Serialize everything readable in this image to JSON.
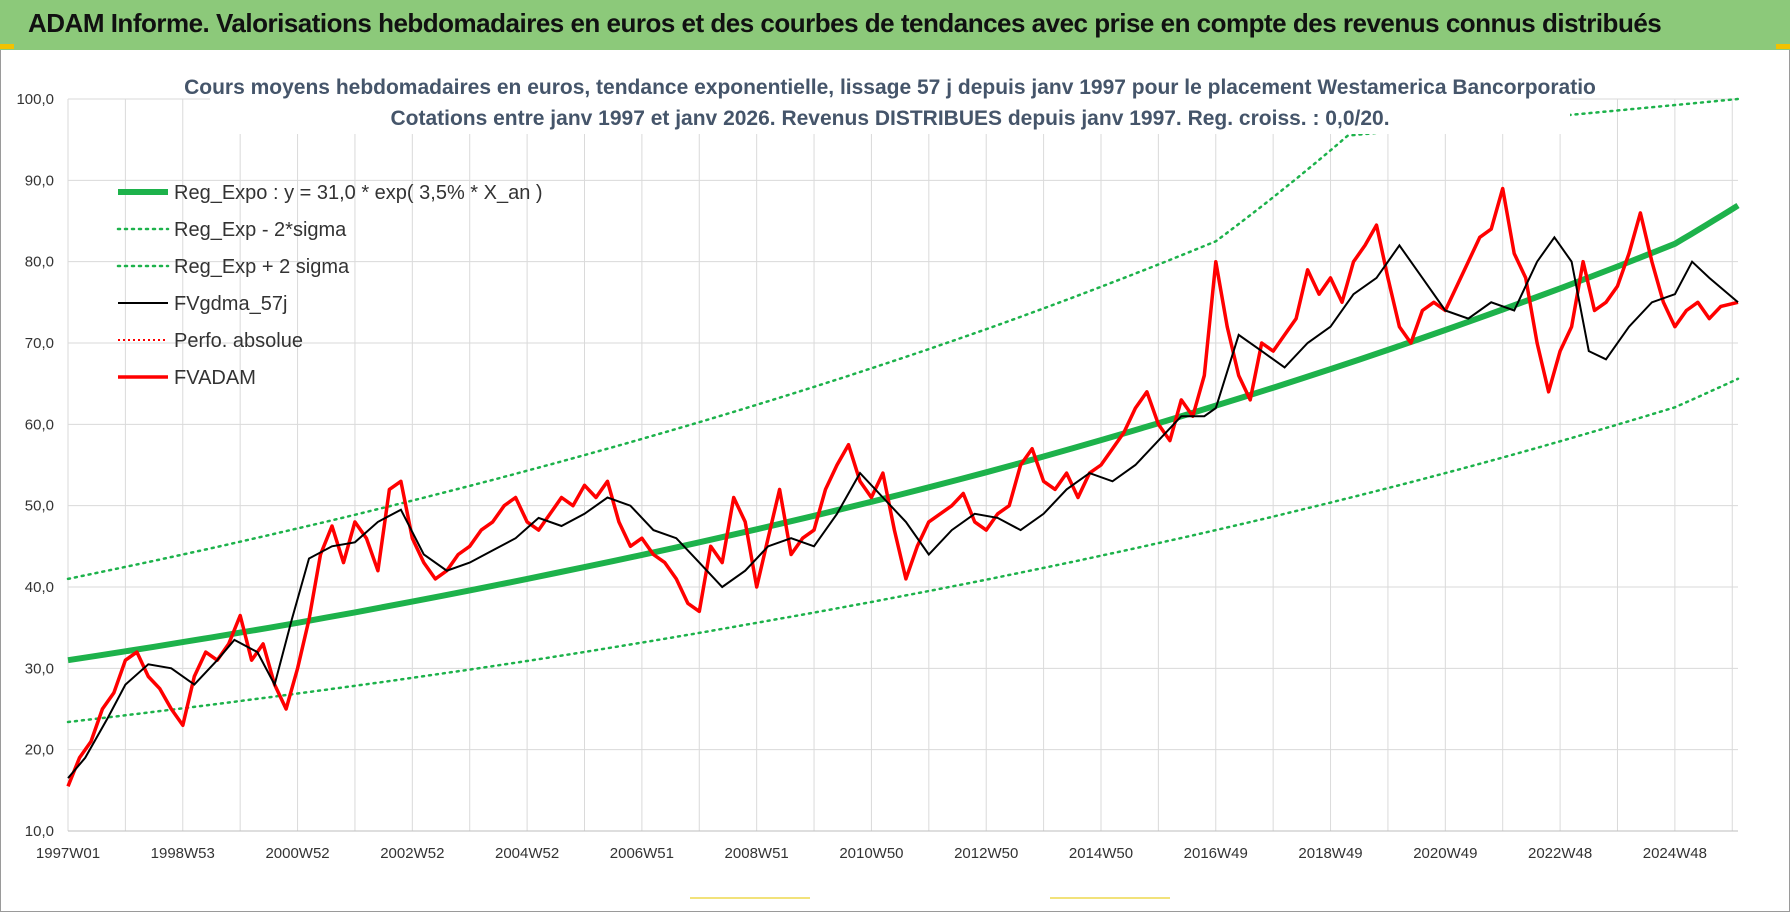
{
  "banner": {
    "title": "ADAM Informe. Valorisations hebdomadaires en euros et des courbes de tendances avec prise en compte des revenus connus distribués"
  },
  "colors": {
    "banner_bg": "#8cc97a",
    "trend": "#1db24b",
    "band": "#1db24b",
    "smoothed": "#000000",
    "price": "#ff0000",
    "perf": "#ff0000",
    "grid": "#dadada"
  },
  "chart_data": {
    "type": "line",
    "title": "Cours moyens hebdomadaires en euros, tendance exponentielle, lissage 57 j depuis janv 1997  pour le placement Westamerica Bancorporatio",
    "subtitle": "Cotations entre janv 1997 et janv 2026. Revenus DISTRIBUES depuis janv 1997. Reg. croiss. : 0,0/20.",
    "xlabel": "",
    "ylabel": "",
    "x_range": [
      1997.0,
      2026.1
    ],
    "ylim": [
      10,
      100
    ],
    "y_ticks": [
      "10,0",
      "20,0",
      "30,0",
      "40,0",
      "50,0",
      "60,0",
      "70,0",
      "80,0",
      "90,0",
      "100,0"
    ],
    "x_ticks": [
      {
        "label": "1997W01",
        "t": 1997.0
      },
      {
        "label": "1998W53",
        "t": 1999.0
      },
      {
        "label": "2000W52",
        "t": 2001.0
      },
      {
        "label": "2002W52",
        "t": 2003.0
      },
      {
        "label": "2004W52",
        "t": 2005.0
      },
      {
        "label": "2006W51",
        "t": 2007.0
      },
      {
        "label": "2008W51",
        "t": 2009.0
      },
      {
        "label": "2010W50",
        "t": 2011.0
      },
      {
        "label": "2012W50",
        "t": 2013.0
      },
      {
        "label": "2014W50",
        "t": 2015.0
      },
      {
        "label": "2016W49",
        "t": 2017.0
      },
      {
        "label": "2018W49",
        "t": 2019.0
      },
      {
        "label": "2020W49",
        "t": 2021.0
      },
      {
        "label": "2022W48",
        "t": 2023.0
      },
      {
        "label": "2024W48",
        "t": 2025.0
      }
    ],
    "grid": true,
    "legend_position": "top-left",
    "legend": [
      {
        "label": "Reg_Expo : y = 31,0 * exp( 3,5% *  X_an )",
        "style": "trend"
      },
      {
        "label": "Reg_Exp - 2*sigma",
        "style": "band"
      },
      {
        "label": "Reg_Exp + 2 sigma",
        "style": "band"
      },
      {
        "label": "FVgdma_57j",
        "style": "smoothed"
      },
      {
        "label": "Perfo. absolue",
        "style": "perf"
      },
      {
        "label": "FVADAM",
        "style": "price"
      }
    ],
    "series": [
      {
        "name": "Reg_Expo : y = 31,0 * exp( 3,5% *  X_an )",
        "x": [
          1997,
          2001,
          2005,
          2009,
          2013,
          2017,
          2021,
          2025,
          2026.1
        ],
        "values": [
          31.0,
          35.6,
          41.0,
          47.1,
          54.1,
          62.3,
          71.6,
          82.2,
          86.9
        ]
      },
      {
        "name": "Reg_Exp - 2*sigma",
        "x": [
          1997,
          2001,
          2005,
          2009,
          2013,
          2017,
          2021,
          2025,
          2026.1
        ],
        "values": [
          23.4,
          26.9,
          30.9,
          35.6,
          40.9,
          47.0,
          54.0,
          62.1,
          65.6
        ]
      },
      {
        "name": "Reg_Exp + 2 sigma",
        "x": [
          1997,
          2001,
          2005,
          2009,
          2013,
          2017,
          2019.3,
          2026.1
        ],
        "values": [
          41.0,
          47.2,
          54.3,
          62.4,
          71.7,
          82.5,
          95.5,
          100.0
        ]
      },
      {
        "name": "FVgdma_57j",
        "x": [
          1997.0,
          1997.3,
          1997.7,
          1998.0,
          1998.4,
          1998.8,
          1999.2,
          1999.6,
          1999.9,
          2000.3,
          2000.6,
          2000.9,
          2001.2,
          2001.6,
          2002.0,
          2002.4,
          2002.8,
          2003.2,
          2003.6,
          2004.0,
          2004.4,
          2004.8,
          2005.2,
          2005.6,
          2006.0,
          2006.4,
          2006.8,
          2007.2,
          2007.6,
          2008.0,
          2008.4,
          2008.8,
          2009.2,
          2009.6,
          2010.0,
          2010.4,
          2010.8,
          2011.2,
          2011.6,
          2012.0,
          2012.4,
          2012.8,
          2013.2,
          2013.6,
          2014.0,
          2014.4,
          2014.8,
          2015.2,
          2015.6,
          2016.0,
          2016.4,
          2016.8,
          2017.0,
          2017.4,
          2017.8,
          2018.2,
          2018.6,
          2019.0,
          2019.4,
          2019.8,
          2020.2,
          2020.6,
          2021.0,
          2021.4,
          2021.8,
          2022.2,
          2022.6,
          2022.9,
          2023.2,
          2023.5,
          2023.8,
          2024.2,
          2024.6,
          2025.0,
          2025.3,
          2025.6,
          2026.1
        ],
        "values": [
          16.5,
          19.0,
          24.0,
          28.0,
          30.5,
          30.0,
          28.0,
          31.0,
          33.5,
          32.0,
          28.0,
          36.0,
          43.5,
          45.0,
          45.5,
          48.0,
          49.5,
          44.0,
          42.0,
          43.0,
          44.5,
          46.0,
          48.5,
          47.5,
          49.0,
          51.0,
          50.0,
          47.0,
          46.0,
          43.0,
          40.0,
          42.0,
          45.0,
          46.0,
          45.0,
          49.0,
          54.0,
          51.0,
          48.0,
          44.0,
          47.0,
          49.0,
          48.5,
          47.0,
          49.0,
          52.0,
          54.0,
          53.0,
          55.0,
          58.0,
          61.0,
          61.0,
          62.0,
          71.0,
          69.0,
          67.0,
          70.0,
          72.0,
          76.0,
          78.0,
          82.0,
          78.0,
          74.0,
          73.0,
          75.0,
          74.0,
          80.0,
          83.0,
          80.0,
          69.0,
          68.0,
          72.0,
          75.0,
          76.0,
          80.0,
          78.0,
          75.0
        ]
      },
      {
        "name": "FVADAM",
        "x": [
          1997.0,
          1997.2,
          1997.4,
          1997.6,
          1997.8,
          1998.0,
          1998.2,
          1998.4,
          1998.6,
          1998.8,
          1999.0,
          1999.2,
          1999.4,
          1999.6,
          1999.8,
          2000.0,
          2000.2,
          2000.4,
          2000.6,
          2000.8,
          2001.0,
          2001.2,
          2001.4,
          2001.6,
          2001.8,
          2002.0,
          2002.2,
          2002.4,
          2002.6,
          2002.8,
          2003.0,
          2003.2,
          2003.4,
          2003.6,
          2003.8,
          2004.0,
          2004.2,
          2004.4,
          2004.6,
          2004.8,
          2005.0,
          2005.2,
          2005.4,
          2005.6,
          2005.8,
          2006.0,
          2006.2,
          2006.4,
          2006.6,
          2006.8,
          2007.0,
          2007.2,
          2007.4,
          2007.6,
          2007.8,
          2008.0,
          2008.2,
          2008.4,
          2008.6,
          2008.8,
          2009.0,
          2009.2,
          2009.4,
          2009.6,
          2009.8,
          2010.0,
          2010.2,
          2010.4,
          2010.6,
          2010.8,
          2011.0,
          2011.2,
          2011.4,
          2011.6,
          2011.8,
          2012.0,
          2012.2,
          2012.4,
          2012.6,
          2012.8,
          2013.0,
          2013.2,
          2013.4,
          2013.6,
          2013.8,
          2014.0,
          2014.2,
          2014.4,
          2014.6,
          2014.8,
          2015.0,
          2015.2,
          2015.4,
          2015.6,
          2015.8,
          2016.0,
          2016.2,
          2016.4,
          2016.6,
          2016.8,
          2017.0,
          2017.2,
          2017.4,
          2017.6,
          2017.8,
          2018.0,
          2018.2,
          2018.4,
          2018.6,
          2018.8,
          2019.0,
          2019.2,
          2019.4,
          2019.6,
          2019.8,
          2020.0,
          2020.2,
          2020.4,
          2020.6,
          2020.8,
          2021.0,
          2021.2,
          2021.4,
          2021.6,
          2021.8,
          2022.0,
          2022.2,
          2022.4,
          2022.6,
          2022.8,
          2023.0,
          2023.2,
          2023.4,
          2023.6,
          2023.8,
          2024.0,
          2024.2,
          2024.4,
          2024.6,
          2024.8,
          2025.0,
          2025.2,
          2025.4,
          2025.6,
          2025.8,
          2026.1
        ],
        "values": [
          15.5,
          19.0,
          21.0,
          25.0,
          27.0,
          31.0,
          32.0,
          29.0,
          27.5,
          25.0,
          23.0,
          29.0,
          32.0,
          31.0,
          33.0,
          36.5,
          31.0,
          33.0,
          28.0,
          25.0,
          30.0,
          36.0,
          44.0,
          47.5,
          43.0,
          48.0,
          46.0,
          42.0,
          52.0,
          53.0,
          46.0,
          43.0,
          41.0,
          42.0,
          44.0,
          45.0,
          47.0,
          48.0,
          50.0,
          51.0,
          48.0,
          47.0,
          49.0,
          51.0,
          50.0,
          52.5,
          51.0,
          53.0,
          48.0,
          45.0,
          46.0,
          44.0,
          43.0,
          41.0,
          38.0,
          37.0,
          45.0,
          43.0,
          51.0,
          48.0,
          40.0,
          46.0,
          52.0,
          44.0,
          46.0,
          47.0,
          52.0,
          55.0,
          57.5,
          53.0,
          51.0,
          54.0,
          47.0,
          41.0,
          45.0,
          48.0,
          49.0,
          50.0,
          51.5,
          48.0,
          47.0,
          49.0,
          50.0,
          55.0,
          57.0,
          53.0,
          52.0,
          54.0,
          51.0,
          54.0,
          55.0,
          57.0,
          59.0,
          62.0,
          64.0,
          60.0,
          58.0,
          63.0,
          61.0,
          66.0,
          80.0,
          72.0,
          66.0,
          63.0,
          70.0,
          69.0,
          71.0,
          73.0,
          79.0,
          76.0,
          78.0,
          75.0,
          80.0,
          82.0,
          84.5,
          78.0,
          72.0,
          70.0,
          74.0,
          75.0,
          74.0,
          77.0,
          80.0,
          83.0,
          84.0,
          89.0,
          81.0,
          78.0,
          70.0,
          64.0,
          69.0,
          72.0,
          80.0,
          74.0,
          75.0,
          77.0,
          81.0,
          86.0,
          80.0,
          75.0,
          72.0,
          74.0,
          75.0,
          73.0,
          74.5,
          75.0
        ]
      }
    ]
  }
}
